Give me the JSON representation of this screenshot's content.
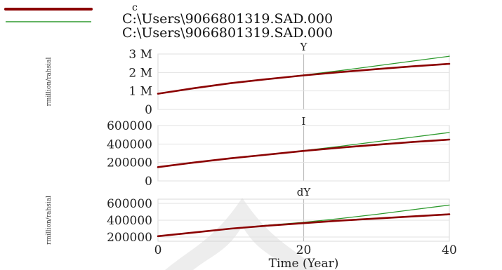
{
  "legend": {
    "header": "c",
    "entries": [
      {
        "label": "C:\\Users\\9066801319.SAD.000",
        "color": "#8b0000"
      },
      {
        "label": "C:\\Users\\9066801319.SAD.000",
        "color": "#2e9a2e"
      }
    ]
  },
  "watermark": "decorative-crest",
  "chart_data": [
    {
      "type": "line",
      "title": "Y",
      "ylabel": "rmillion/rahsial",
      "xlim": [
        0,
        40
      ],
      "ylim": [
        0,
        3000000
      ],
      "yticks": [
        0,
        1000000,
        2000000,
        3000000
      ],
      "ytick_labels": [
        "0",
        "1 M",
        "2 M",
        "3 M"
      ],
      "grid": true,
      "x": [
        0,
        5,
        10,
        15,
        20,
        25,
        30,
        35,
        40
      ],
      "series": [
        {
          "name": "C:\\Users\\9066801319.SAD.000",
          "color": "#8b0000",
          "values": [
            850000,
            1150000,
            1420000,
            1640000,
            1840000,
            2020000,
            2180000,
            2330000,
            2470000
          ]
        },
        {
          "name": "C:\\Users\\9066801319.SAD.000",
          "color": "#2e9a2e",
          "values": [
            850000,
            1150000,
            1420000,
            1640000,
            1860000,
            2100000,
            2360000,
            2620000,
            2880000
          ]
        }
      ]
    },
    {
      "type": "line",
      "title": "I",
      "ylabel": "",
      "xlim": [
        0,
        40
      ],
      "ylim": [
        0,
        600000
      ],
      "yticks": [
        0,
        200000,
        400000,
        600000
      ],
      "ytick_labels": [
        "0",
        "200000",
        "400000",
        "600000"
      ],
      "grid": true,
      "x": [
        0,
        5,
        10,
        15,
        20,
        25,
        30,
        35,
        40
      ],
      "series": [
        {
          "name": "C:\\Users\\9066801319.SAD.000",
          "color": "#8b0000",
          "values": [
            150000,
            200000,
            245000,
            285000,
            325000,
            360000,
            392000,
            422000,
            448000
          ]
        },
        {
          "name": "C:\\Users\\9066801319.SAD.000",
          "color": "#2e9a2e",
          "values": [
            150000,
            200000,
            245000,
            285000,
            328000,
            375000,
            425000,
            475000,
            525000
          ]
        }
      ]
    },
    {
      "type": "line",
      "title": "dY",
      "ylabel": "rmillion/rahsial",
      "xlabel": "Time (Year)",
      "xlim": [
        0,
        40
      ],
      "xticks": [
        0,
        20,
        40
      ],
      "xtick_labels": [
        "0",
        "20",
        "40"
      ],
      "ylim": [
        150000,
        650000
      ],
      "yticks": [
        200000,
        400000,
        600000
      ],
      "ytick_labels": [
        "200000",
        "400000",
        "600000"
      ],
      "grid": true,
      "x": [
        0,
        5,
        10,
        15,
        20,
        25,
        30,
        35,
        40
      ],
      "series": [
        {
          "name": "C:\\Users\\9066801319.SAD.000",
          "color": "#8b0000",
          "values": [
            210000,
            255000,
            300000,
            335000,
            365000,
            395000,
            420000,
            445000,
            470000
          ]
        },
        {
          "name": "C:\\Users\\9066801319.SAD.000",
          "color": "#2e9a2e",
          "values": [
            210000,
            255000,
            300000,
            340000,
            375000,
            420000,
            470000,
            525000,
            580000
          ]
        }
      ]
    }
  ]
}
